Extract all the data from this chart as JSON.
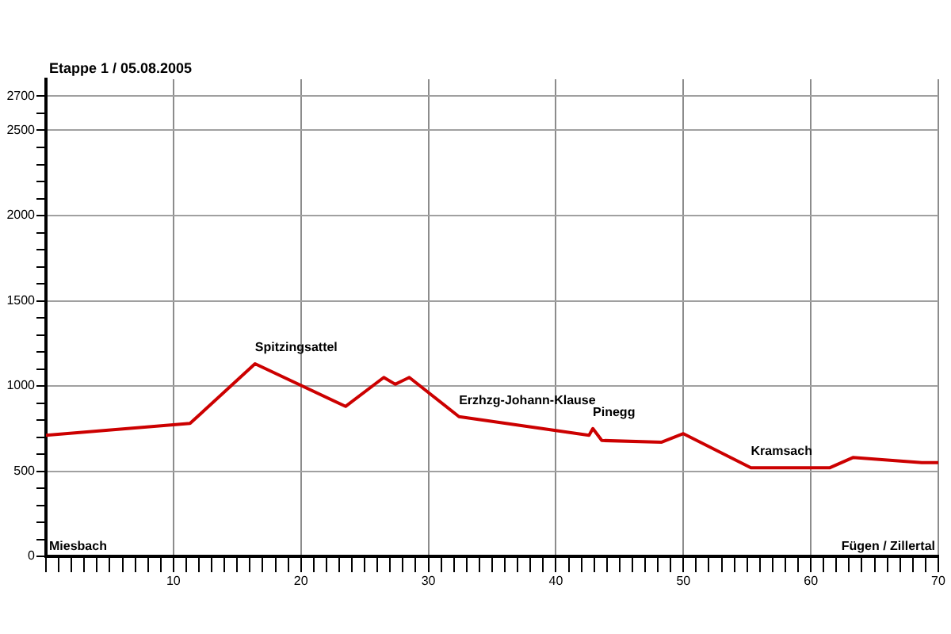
{
  "chart_data": {
    "type": "line",
    "title": "Etappe 1 / 05.08.2005",
    "x": [
      0,
      11.3,
      16.4,
      23.5,
      26.5,
      27.4,
      28.5,
      32.4,
      42.6,
      42.9,
      43.6,
      48.3,
      50,
      55.3,
      61.5,
      63.3,
      68.7,
      70
    ],
    "series": [
      {
        "color": "#cc0000",
        "values": [
          710,
          780,
          1130,
          880,
          1050,
          1010,
          1050,
          820,
          710,
          750,
          680,
          670,
          720,
          520,
          520,
          580,
          550,
          550
        ]
      }
    ],
    "xlim": [
      0,
      70
    ],
    "xticks": [
      {
        "value": 0,
        "label": null
      },
      {
        "value": 1,
        "label": null
      },
      {
        "value": 2,
        "label": null
      },
      {
        "value": 3,
        "label": null
      },
      {
        "value": 4,
        "label": null
      },
      {
        "value": 5,
        "label": null
      },
      {
        "value": 6,
        "label": null
      },
      {
        "value": 7,
        "label": null
      },
      {
        "value": 8,
        "label": null
      },
      {
        "value": 9,
        "label": null
      },
      10,
      {
        "value": 11,
        "label": null
      },
      {
        "value": 12,
        "label": null
      },
      {
        "value": 13,
        "label": null
      },
      {
        "value": 14,
        "label": null
      },
      {
        "value": 15,
        "label": null
      },
      {
        "value": 16,
        "label": null
      },
      {
        "value": 17,
        "label": null
      },
      {
        "value": 18,
        "label": null
      },
      {
        "value": 19,
        "label": null
      },
      20,
      {
        "value": 21,
        "label": null
      },
      {
        "value": 22,
        "label": null
      },
      {
        "value": 23,
        "label": null
      },
      {
        "value": 24,
        "label": null
      },
      {
        "value": 25,
        "label": null
      },
      {
        "value": 26,
        "label": null
      },
      {
        "value": 27,
        "label": null
      },
      {
        "value": 28,
        "label": null
      },
      {
        "value": 29,
        "label": null
      },
      30,
      {
        "value": 31,
        "label": null
      },
      {
        "value": 32,
        "label": null
      },
      {
        "value": 33,
        "label": null
      },
      {
        "value": 34,
        "label": null
      },
      {
        "value": 35,
        "label": null
      },
      {
        "value": 36,
        "label": null
      },
      {
        "value": 37,
        "label": null
      },
      {
        "value": 38,
        "label": null
      },
      {
        "value": 39,
        "label": null
      },
      40,
      {
        "value": 41,
        "label": null
      },
      {
        "value": 42,
        "label": null
      },
      {
        "value": 43,
        "label": null
      },
      {
        "value": 44,
        "label": null
      },
      {
        "value": 45,
        "label": null
      },
      {
        "value": 46,
        "label": null
      },
      {
        "value": 47,
        "label": null
      },
      {
        "value": 48,
        "label": null
      },
      {
        "value": 49,
        "label": null
      },
      50,
      {
        "value": 51,
        "label": null
      },
      {
        "value": 52,
        "label": null
      },
      {
        "value": 53,
        "label": null
      },
      {
        "value": 54,
        "label": null
      },
      {
        "value": 55,
        "label": null
      },
      {
        "value": 56,
        "label": null
      },
      {
        "value": 57,
        "label": null
      },
      {
        "value": 58,
        "label": null
      },
      {
        "value": 59,
        "label": null
      },
      60,
      {
        "value": 61,
        "label": null
      },
      {
        "value": 62,
        "label": null
      },
      {
        "value": 63,
        "label": null
      },
      {
        "value": 64,
        "label": null
      },
      {
        "value": 65,
        "label": null
      },
      {
        "value": 66,
        "label": null
      },
      {
        "value": 67,
        "label": null
      },
      {
        "value": 68,
        "label": null
      },
      {
        "value": 69,
        "label": null
      },
      70
    ],
    "ylim": [
      0,
      2800
    ],
    "yticks": [
      0,
      {
        "value": 100,
        "label": null
      },
      {
        "value": 200,
        "label": null
      },
      {
        "value": 300,
        "label": null
      },
      {
        "value": 400,
        "label": null
      },
      500,
      {
        "value": 600,
        "label": null
      },
      {
        "value": 700,
        "label": null
      },
      {
        "value": 800,
        "label": null
      },
      {
        "value": 900,
        "label": null
      },
      1000,
      {
        "value": 1100,
        "label": null
      },
      {
        "value": 1200,
        "label": null
      },
      {
        "value": 1300,
        "label": null
      },
      {
        "value": 1400,
        "label": null
      },
      1500,
      {
        "value": 1600,
        "label": null
      },
      {
        "value": 1700,
        "label": null
      },
      {
        "value": 1800,
        "label": null
      },
      {
        "value": 1900,
        "label": null
      },
      2000,
      {
        "value": 2100,
        "label": null
      },
      {
        "value": 2200,
        "label": null
      },
      {
        "value": 2300,
        "label": null
      },
      {
        "value": 2400,
        "label": null
      },
      2500,
      {
        "value": 2600,
        "label": null
      },
      2700
    ],
    "grid": true,
    "legend": false,
    "marker": "none",
    "line_style": "solid",
    "annotations": [
      "Miesbach",
      {
        "text": "Spitzingsattel",
        "x": 16.4,
        "y": 1130
      },
      {
        "text": "Erzhzg-Johann-Klause",
        "x": 32.4,
        "y": 820
      },
      {
        "text": "Pinegg",
        "x": 42.9,
        "y": 750
      },
      {
        "text": "Kramsach",
        "x": 55.3,
        "y": 520
      },
      "Fügen / Zillertal"
    ]
  }
}
